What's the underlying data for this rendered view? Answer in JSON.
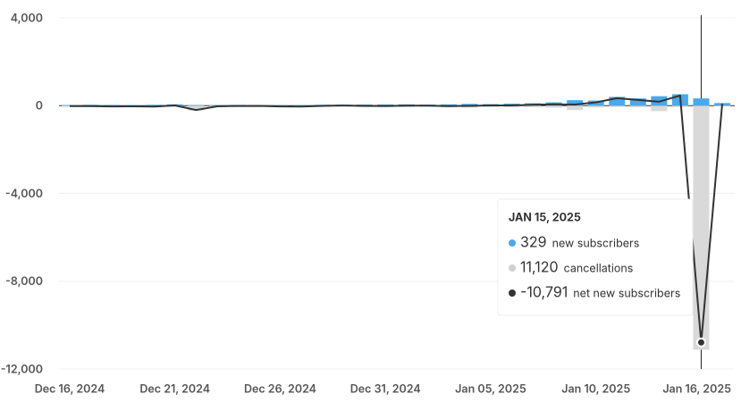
{
  "chart_data": {
    "type": "bar",
    "categories": [
      "Dec 16, 2024",
      null,
      null,
      null,
      null,
      "Dec 21, 2024",
      null,
      null,
      null,
      null,
      "Dec 26, 2024",
      null,
      null,
      null,
      null,
      "Dec 31, 2024",
      null,
      null,
      null,
      null,
      "Jan 05, 2025",
      null,
      null,
      null,
      null,
      "Jan 10, 2025",
      null,
      null,
      null,
      null,
      null,
      "Jan 16, 2025"
    ],
    "series": [
      {
        "name": "new subscribers",
        "color": "#4aa8ec",
        "kind": "bar",
        "values": [
          30,
          40,
          35,
          30,
          40,
          60,
          20,
          30,
          35,
          30,
          25,
          30,
          40,
          45,
          50,
          55,
          60,
          50,
          60,
          80,
          70,
          90,
          110,
          150,
          250,
          230,
          400,
          330,
          430,
          520,
          329,
          120
        ]
      },
      {
        "name": "cancellations",
        "color": "#d9d9d9",
        "kind": "bar",
        "values": [
          -50,
          -60,
          -70,
          -60,
          -80,
          -50,
          -220,
          -60,
          -50,
          -40,
          -60,
          -70,
          -50,
          -40,
          -60,
          -70,
          -60,
          -50,
          -80,
          -90,
          -60,
          -80,
          -70,
          -90,
          -200,
          -80,
          -60,
          -70,
          -250,
          -60,
          -11120,
          -30
        ]
      },
      {
        "name": "net new subscribers",
        "color": "#333333",
        "kind": "line",
        "values": [
          -20,
          -20,
          -35,
          -30,
          -40,
          10,
          -200,
          -30,
          -15,
          -10,
          -35,
          -40,
          -10,
          5,
          -10,
          -15,
          0,
          0,
          -20,
          -10,
          10,
          10,
          40,
          60,
          50,
          150,
          340,
          260,
          180,
          460,
          -10791,
          90
        ]
      }
    ],
    "ylim": [
      -12000,
      4000
    ],
    "yticks": [
      {
        "value": 4000,
        "label": "4,000"
      },
      0,
      {
        "value": -4000,
        "label": "-4,000"
      },
      {
        "value": -8000,
        "label": "-8,000"
      },
      {
        "value": -12000,
        "label": "-12,000"
      }
    ],
    "grid": true,
    "tooltip": {
      "title": "JAN 15, 2025",
      "value_labels": [
        "329",
        "11,120",
        "-10,791"
      ]
    }
  }
}
